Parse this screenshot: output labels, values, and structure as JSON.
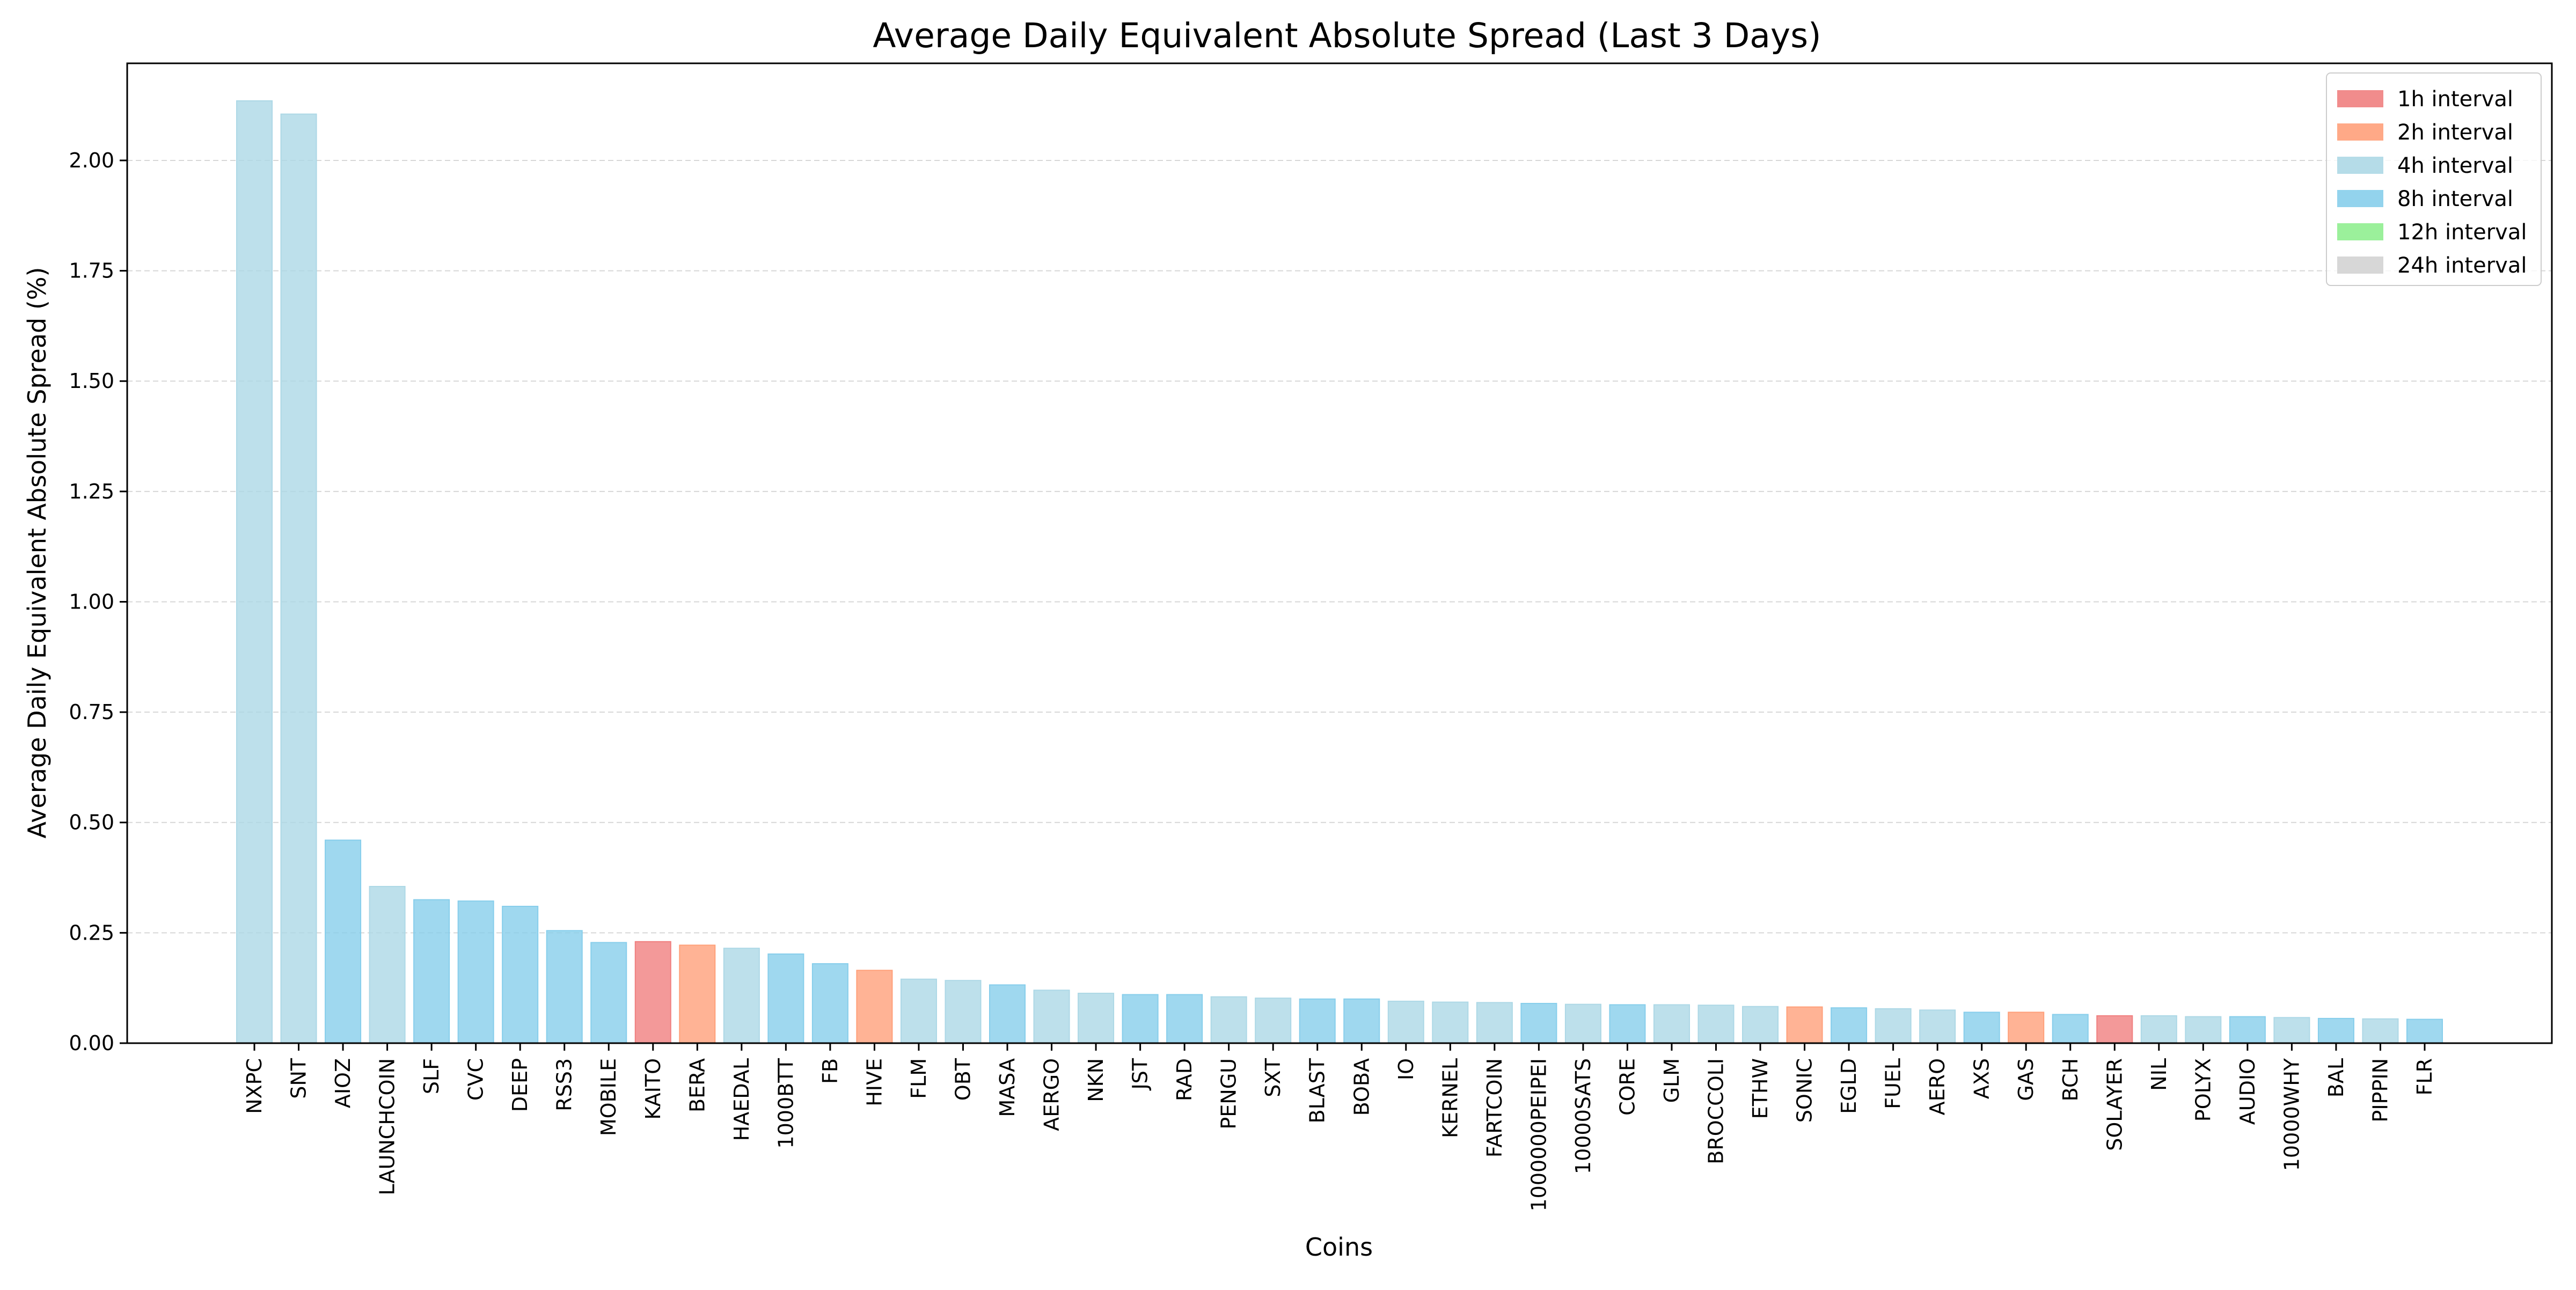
{
  "chart_data": {
    "type": "bar",
    "title": "Average Daily Equivalent Absolute Spread (Last 3 Days)",
    "xlabel": "Coins",
    "ylabel": "Average Daily Equivalent Absolute Spread (%)",
    "ylim": [
      0,
      2.22
    ],
    "yticks": [
      "0.00",
      "0.25",
      "0.50",
      "0.75",
      "1.00",
      "1.25",
      "1.50",
      "1.75",
      "2.00"
    ],
    "grid": "y-dashed",
    "legend_position": "top-right",
    "legend": [
      {
        "label": "1h interval",
        "color": "#F08080"
      },
      {
        "label": "2h interval",
        "color": "#FFA07A"
      },
      {
        "label": "4h interval",
        "color": "#ADD8E6"
      },
      {
        "label": "8h interval",
        "color": "#87CEEB"
      },
      {
        "label": "12h interval",
        "color": "#90EE90"
      },
      {
        "label": "24h interval",
        "color": "#D3D3D3"
      }
    ],
    "categories": [
      "NXPC",
      "SNT",
      "AIOZ",
      "LAUNCHCOIN",
      "SLF",
      "CVC",
      "DEEP",
      "RSS3",
      "MOBILE",
      "KAITO",
      "BERA",
      "HAEDAL",
      "1000BTT",
      "FB",
      "HIVE",
      "FLM",
      "OBT",
      "MASA",
      "AERGO",
      "NKN",
      "JST",
      "RAD",
      "PENGU",
      "SXT",
      "BLAST",
      "BOBA",
      "IO",
      "KERNEL",
      "FARTCOIN",
      "1000000PEIPEI",
      "10000SATS",
      "CORE",
      "GLM",
      "BROCCOLI",
      "ETHW",
      "SONIC",
      "EGLD",
      "FUEL",
      "AERO",
      "AXS",
      "GAS",
      "BCH",
      "SOLAYER",
      "NIL",
      "POLYX",
      "AUDIO",
      "10000WHY",
      "BAL",
      "PIPPIN",
      "FLR"
    ],
    "values": [
      2.135,
      2.105,
      0.46,
      0.355,
      0.325,
      0.322,
      0.31,
      0.255,
      0.228,
      0.23,
      0.222,
      0.215,
      0.202,
      0.18,
      0.165,
      0.145,
      0.142,
      0.132,
      0.12,
      0.113,
      0.11,
      0.11,
      0.105,
      0.102,
      0.1,
      0.1,
      0.095,
      0.093,
      0.092,
      0.09,
      0.088,
      0.087,
      0.087,
      0.086,
      0.083,
      0.082,
      0.08,
      0.078,
      0.075,
      0.07,
      0.07,
      0.065,
      0.062,
      0.062,
      0.06,
      0.06,
      0.058,
      0.056,
      0.055,
      0.054
    ],
    "intervals": [
      "4h",
      "4h",
      "8h",
      "4h",
      "8h",
      "8h",
      "8h",
      "8h",
      "8h",
      "1h",
      "2h",
      "4h",
      "8h",
      "8h",
      "2h",
      "4h",
      "4h",
      "8h",
      "4h",
      "4h",
      "8h",
      "8h",
      "4h",
      "4h",
      "8h",
      "8h",
      "4h",
      "4h",
      "4h",
      "8h",
      "4h",
      "8h",
      "4h",
      "4h",
      "4h",
      "2h",
      "8h",
      "4h",
      "4h",
      "8h",
      "2h",
      "8h",
      "1h",
      "4h",
      "4h",
      "8h",
      "4h",
      "8h",
      "4h",
      "8h"
    ]
  }
}
